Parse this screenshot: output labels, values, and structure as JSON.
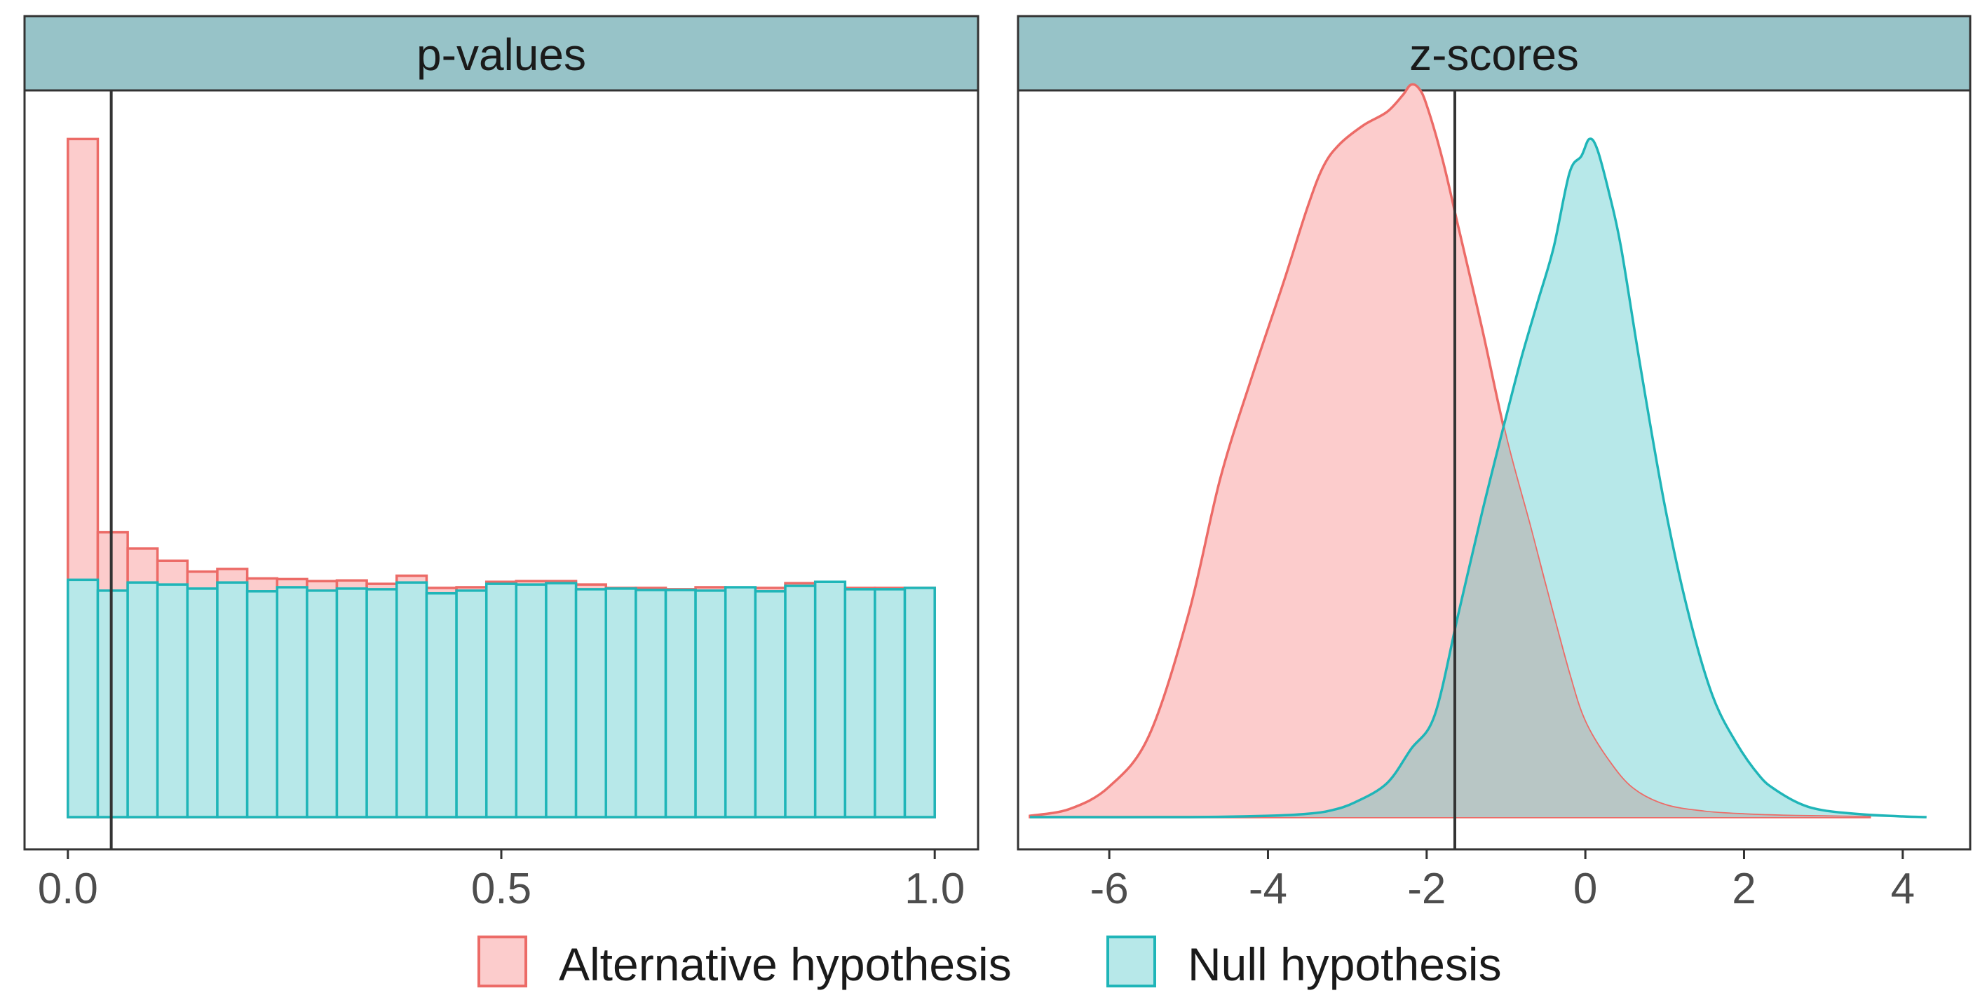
{
  "chart_data": [
    {
      "type": "bar",
      "title": "p-values",
      "xlim": [
        -0.05,
        1.05
      ],
      "x_ticks": [
        0.0,
        0.5,
        1.0
      ],
      "x_tick_labels": [
        "0.0",
        "0.5",
        "1.0"
      ],
      "ylim": [
        0,
        1.05
      ],
      "vline": 0.05,
      "bin_edges": [
        0.0,
        0.0345,
        0.069,
        0.1034,
        0.1379,
        0.1724,
        0.2069,
        0.2414,
        0.2759,
        0.3103,
        0.3448,
        0.3793,
        0.4138,
        0.4483,
        0.4828,
        0.5172,
        0.5517,
        0.5862,
        0.6207,
        0.6552,
        0.6897,
        0.7241,
        0.7586,
        0.7931,
        0.8276,
        0.8621,
        0.8966,
        0.931,
        0.9655,
        1.0
      ],
      "series": [
        {
          "name": "Alternative hypothesis",
          "values": [
            1.0,
            0.42,
            0.396,
            0.378,
            0.362,
            0.366,
            0.352,
            0.351,
            0.348,
            0.349,
            0.344,
            0.356,
            0.338,
            0.339,
            0.347,
            0.348,
            0.348,
            0.343,
            0.338,
            0.338,
            0.336,
            0.339,
            0.335,
            0.338,
            0.345,
            0.34,
            0.338,
            0.338,
            0.338
          ]
        },
        {
          "name": "Null hypothesis",
          "values": [
            0.35,
            0.334,
            0.346,
            0.343,
            0.337,
            0.346,
            0.333,
            0.339,
            0.334,
            0.337,
            0.336,
            0.346,
            0.33,
            0.334,
            0.344,
            0.343,
            0.345,
            0.336,
            0.337,
            0.335,
            0.335,
            0.334,
            0.339,
            0.333,
            0.341,
            0.347,
            0.336,
            0.336,
            0.338
          ]
        }
      ]
    },
    {
      "type": "area",
      "title": "z-scores",
      "xlim": [
        -7.15,
        4.85
      ],
      "x_ticks": [
        -6,
        -4,
        -2,
        0,
        2,
        4
      ],
      "x_tick_labels": [
        "-6",
        "-4",
        "-2",
        "0",
        "2",
        "4"
      ],
      "ylim": [
        0,
        1.05
      ],
      "vline": -1.645,
      "series": [
        {
          "name": "Alternative hypothesis",
          "x": [
            -7.0,
            -6.5,
            -6.0,
            -5.5,
            -5.0,
            -4.6,
            -4.2,
            -3.8,
            -3.5,
            -3.3,
            -3.1,
            -2.8,
            -2.5,
            -2.3,
            -2.2,
            -2.1,
            -2.0,
            -1.8,
            -1.6,
            -1.3,
            -1.0,
            -0.7,
            -0.5,
            -0.2,
            0.0,
            0.3,
            0.6,
            1.0,
            1.5,
            2.0,
            2.5,
            3.0,
            3.6
          ],
          "y": [
            0.002,
            0.012,
            0.045,
            0.12,
            0.3,
            0.5,
            0.65,
            0.79,
            0.9,
            0.96,
            0.992,
            1.02,
            1.04,
            1.065,
            1.08,
            1.075,
            1.05,
            0.97,
            0.87,
            0.72,
            0.56,
            0.43,
            0.34,
            0.21,
            0.14,
            0.082,
            0.042,
            0.018,
            0.008,
            0.004,
            0.002,
            0.001,
            0.0
          ]
        },
        {
          "name": "Null hypothesis",
          "x": [
            -7.0,
            -5.0,
            -4.0,
            -3.5,
            -3.2,
            -2.9,
            -2.5,
            -2.2,
            -1.9,
            -1.6,
            -1.3,
            -1.0,
            -0.8,
            -0.6,
            -0.4,
            -0.2,
            -0.05,
            0.05,
            0.15,
            0.3,
            0.45,
            0.7,
            1.0,
            1.3,
            1.6,
            1.9,
            2.2,
            2.4,
            2.7,
            3.0,
            3.5,
            4.0,
            4.3
          ],
          "y": [
            0.0,
            0.0,
            0.002,
            0.005,
            0.01,
            0.022,
            0.05,
            0.1,
            0.15,
            0.3,
            0.45,
            0.59,
            0.68,
            0.76,
            0.84,
            0.95,
            0.975,
            1.0,
            0.985,
            0.92,
            0.84,
            0.66,
            0.46,
            0.3,
            0.18,
            0.11,
            0.06,
            0.04,
            0.02,
            0.01,
            0.004,
            0.001,
            0.0
          ]
        }
      ]
    }
  ],
  "legend": {
    "position": "bottom",
    "items": [
      {
        "label": "Alternative hypothesis",
        "fill": "#fccccc",
        "stroke": "#ec6b67"
      },
      {
        "label": "Null hypothesis",
        "fill": "#b7e8e9",
        "stroke": "#1fb5b8"
      }
    ]
  },
  "colors": {
    "alt_fill": "#fccccc",
    "alt_stroke": "#ec6b67",
    "null_fill": "#b7e8e9",
    "null_stroke": "#1fb5b8",
    "strip_fill": "#97c3c8",
    "panel_border": "#333333",
    "vline": "#333333",
    "overlap_fill": "#b8c6c5"
  }
}
